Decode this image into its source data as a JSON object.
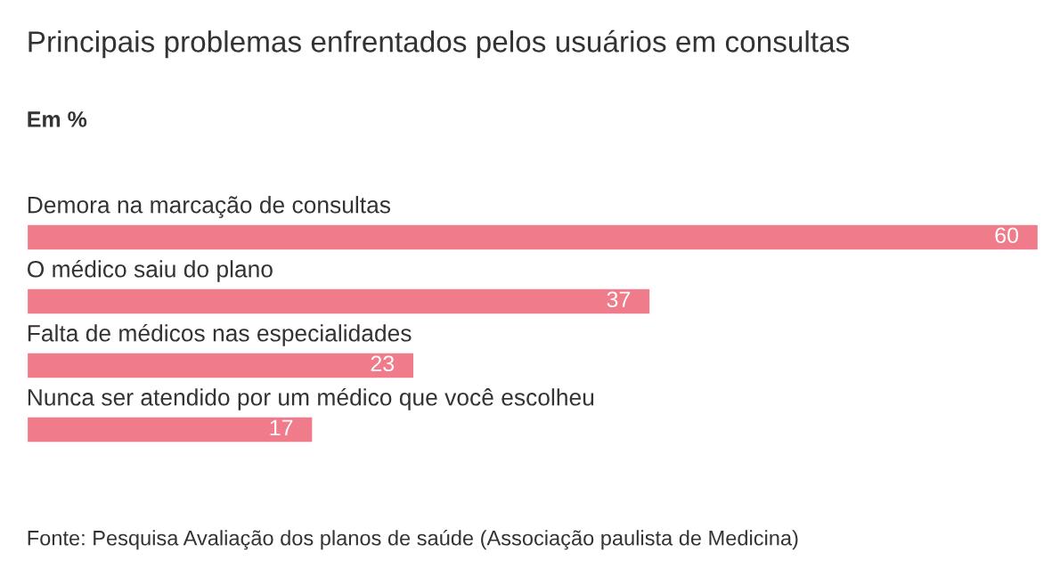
{
  "chart_data": {
    "type": "bar",
    "orientation": "horizontal",
    "title": "Principais problemas enfrentados pelos usuários em consultas",
    "subtitle": "Em %",
    "categories": [
      "Demora na marcação de consultas",
      "O médico saiu do plano",
      "Falta de médicos nas especialidades",
      "Nunca ser atendido por um médico que você escolheu"
    ],
    "values": [
      60,
      37,
      23,
      17
    ],
    "color": "#f07b8a",
    "data_labels": true,
    "annotations": [
      "Fonte: Pesquisa Avaliação dos planos de saúde (Associação paulista de Medicina)"
    ]
  }
}
